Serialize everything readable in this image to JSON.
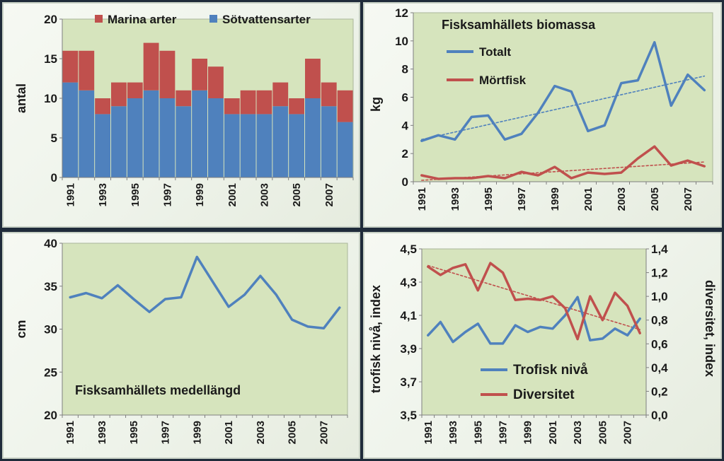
{
  "chart_data": [
    {
      "id": "artantal",
      "type": "bar",
      "stacked": true,
      "title": "",
      "xlabel": "",
      "ylabel": "antal",
      "ylim": [
        0,
        20
      ],
      "yticks": [
        0,
        5,
        10,
        15,
        20
      ],
      "categories": [
        "1991",
        "1992",
        "1993",
        "1994",
        "1995",
        "1996",
        "1997",
        "1998",
        "1999",
        "2000",
        "2001",
        "2002",
        "2003",
        "2004",
        "2005",
        "2006",
        "2007",
        "2008"
      ],
      "xtick_labels": [
        "1991",
        "1993",
        "1995",
        "1997",
        "1999",
        "2001",
        "2003",
        "2005",
        "2007"
      ],
      "series": [
        {
          "name": "Sötvattensarter",
          "color": "#4f81bd",
          "values": [
            12,
            11,
            8,
            9,
            10,
            11,
            10,
            9,
            11,
            10,
            8,
            8,
            8,
            9,
            8,
            10,
            9,
            7
          ]
        },
        {
          "name": "Marina arter",
          "color": "#c0504d",
          "values": [
            4,
            5,
            2,
            3,
            2,
            6,
            6,
            2,
            4,
            4,
            2,
            3,
            3,
            3,
            2,
            5,
            3,
            4
          ]
        }
      ],
      "grid": false,
      "legend": "top"
    },
    {
      "id": "biomassa",
      "type": "line",
      "title": "Fisksamhällets biomassa",
      "xlabel": "",
      "ylabel": "kg",
      "ylim": [
        0,
        12
      ],
      "yticks": [
        0,
        2,
        4,
        6,
        8,
        10,
        12
      ],
      "x": [
        "1991",
        "1992",
        "1993",
        "1994",
        "1995",
        "1996",
        "1997",
        "1998",
        "1999",
        "2000",
        "2001",
        "2002",
        "2003",
        "2004",
        "2005",
        "2006",
        "2007",
        "2008"
      ],
      "xtick_labels": [
        "1991",
        "1993",
        "1995",
        "1997",
        "1999",
        "2001",
        "2003",
        "2005",
        "2007"
      ],
      "series": [
        {
          "name": "Totalt",
          "color": "#4f81bd",
          "values": [
            2.9,
            3.3,
            3.0,
            4.6,
            4.7,
            3.0,
            3.4,
            4.9,
            6.8,
            6.4,
            3.6,
            4.0,
            7.0,
            7.2,
            9.9,
            5.4,
            7.6,
            6.5
          ],
          "trend": [
            3.0,
            7.5
          ]
        },
        {
          "name": "Mörtfisk",
          "color": "#c0504d",
          "values": [
            0.45,
            0.2,
            0.25,
            0.25,
            0.4,
            0.25,
            0.7,
            0.45,
            1.05,
            0.25,
            0.65,
            0.55,
            0.65,
            1.65,
            2.5,
            1.15,
            1.5,
            1.1
          ],
          "trend": [
            0.1,
            1.4
          ]
        }
      ],
      "grid": false,
      "legend": "top-left"
    },
    {
      "id": "medellangd",
      "type": "line",
      "title": "Fisksamhällets medellängd",
      "xlabel": "",
      "ylabel": "cm",
      "ylim": [
        20,
        40
      ],
      "yticks": [
        20,
        25,
        30,
        35,
        40
      ],
      "x": [
        "1991",
        "1992",
        "1993",
        "1994",
        "1995",
        "1996",
        "1997",
        "1998",
        "1999",
        "2000",
        "2001",
        "2002",
        "2003",
        "2004",
        "2005",
        "2006",
        "2007",
        "2008"
      ],
      "xtick_labels": [
        "1991",
        "1993",
        "1995",
        "1997",
        "1999",
        "2001",
        "2003",
        "2005",
        "2007"
      ],
      "series": [
        {
          "color": "#4f81bd",
          "values": [
            33.7,
            34.2,
            33.6,
            35.1,
            33.5,
            32.0,
            33.5,
            33.7,
            38.4,
            35.5,
            32.6,
            34.0,
            36.2,
            34.0,
            31.1,
            30.3,
            30.1,
            32.5
          ]
        }
      ],
      "grid": false,
      "legend": "none"
    },
    {
      "id": "trofisk-diversitet",
      "type": "line",
      "title": "",
      "xlabel": "",
      "ylabel": "trofisk nivå, index",
      "ylabel_right": "diversitet, index",
      "ylim": [
        3.5,
        4.5
      ],
      "yticks": [
        "3,5",
        "3,7",
        "3,9",
        "4,1",
        "4,3",
        "4,5"
      ],
      "ylim_right": [
        0,
        1.4
      ],
      "yticks_right": [
        "0,0",
        "0,2",
        "0,4",
        "0,6",
        "0,8",
        "1,0",
        "1,2",
        "1,4"
      ],
      "x": [
        "1991",
        "1992",
        "1993",
        "1994",
        "1995",
        "1996",
        "1997",
        "1998",
        "1999",
        "2000",
        "2001",
        "2002",
        "2003",
        "2004",
        "2005",
        "2006",
        "2007",
        "2008"
      ],
      "xtick_labels": [
        "1991",
        "1993",
        "1995",
        "1997",
        "1999",
        "2001",
        "2003",
        "2005",
        "2007"
      ],
      "series": [
        {
          "name": "Trofisk nivå",
          "axis": "left",
          "color": "#4f81bd",
          "values": [
            3.98,
            4.06,
            3.94,
            4.0,
            4.05,
            3.93,
            3.93,
            4.04,
            4.0,
            4.03,
            4.02,
            4.1,
            4.21,
            3.95,
            3.96,
            4.02,
            3.98,
            4.08
          ]
        },
        {
          "name": "Diversitet",
          "axis": "right",
          "color": "#c0504d",
          "values": [
            1.25,
            1.18,
            1.24,
            1.27,
            1.05,
            1.28,
            1.2,
            0.97,
            0.98,
            0.97,
            1.0,
            0.9,
            0.64,
            1.0,
            0.8,
            1.03,
            0.92,
            0.69
          ],
          "trend": [
            1.26,
            0.72
          ]
        }
      ],
      "grid": false,
      "legend": "bottom"
    }
  ]
}
